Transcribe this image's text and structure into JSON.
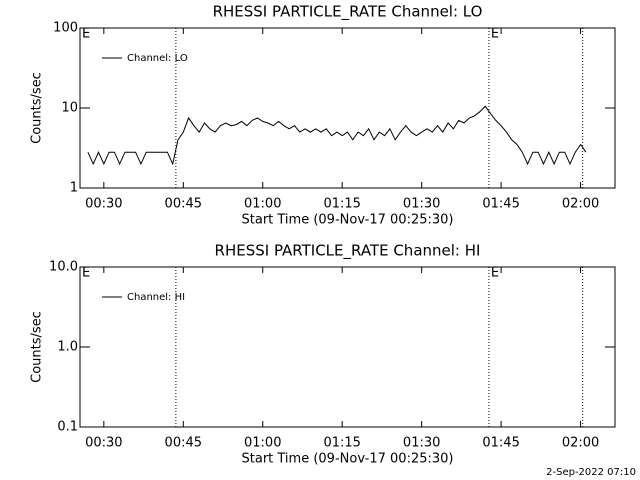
{
  "chart_data": [
    {
      "type": "line",
      "title": "RHESSI PARTICLE_RATE Channel: LO",
      "xlabel": "Start Time (09-Nov-17 00:25:30)",
      "ylabel": "Counts/sec",
      "log_y": true,
      "legend": "upper left",
      "xlim": [
        25.5,
        126.5
      ],
      "xticks": [
        {
          "value": 30,
          "label": "00:30"
        },
        {
          "value": 45,
          "label": "00:45"
        },
        {
          "value": 60,
          "label": "01:00"
        },
        {
          "value": 75,
          "label": "01:15"
        },
        {
          "value": 90,
          "label": "01:30"
        },
        {
          "value": 105,
          "label": "01:45"
        },
        {
          "value": 120,
          "label": "02:00"
        }
      ],
      "ylim": [
        1,
        100
      ],
      "yticks": [
        1,
        10,
        100
      ],
      "vlines": [
        43.6,
        102.7,
        120.4
      ],
      "annotations": [
        {
          "text": "E",
          "x": 25.5
        },
        {
          "text": "E",
          "x": 102.7
        }
      ],
      "x": [
        27,
        28,
        29,
        30,
        31,
        32,
        33,
        34,
        35,
        36,
        37,
        38,
        39,
        40,
        41,
        42,
        43,
        44,
        45,
        46,
        47,
        48,
        49,
        50,
        51,
        52,
        53,
        54,
        55,
        56,
        57,
        58,
        59,
        60,
        61,
        62,
        63,
        64,
        65,
        66,
        67,
        68,
        69,
        70,
        71,
        72,
        73,
        74,
        75,
        76,
        77,
        78,
        79,
        80,
        81,
        82,
        83,
        84,
        85,
        86,
        87,
        88,
        89,
        90,
        91,
        92,
        93,
        94,
        95,
        96,
        97,
        98,
        99,
        100,
        101,
        102,
        103,
        104,
        105,
        106,
        107,
        108,
        109,
        110,
        111,
        112,
        113,
        114,
        115,
        116,
        117,
        118,
        119,
        120,
        121
      ],
      "series": [
        {
          "name": "Channel: LO",
          "color": "#000000",
          "values": [
            2.8,
            2.0,
            2.8,
            2.0,
            2.8,
            2.8,
            2.0,
            2.8,
            2.8,
            2.8,
            2.0,
            2.8,
            2.8,
            2.8,
            2.8,
            2.8,
            2.0,
            4.0,
            5.0,
            7.5,
            6.0,
            5.0,
            6.5,
            5.5,
            5.0,
            6.0,
            6.5,
            6.0,
            6.2,
            6.8,
            6.0,
            7.0,
            7.5,
            6.8,
            6.5,
            6.0,
            6.8,
            6.0,
            5.5,
            6.0,
            5.0,
            5.5,
            5.0,
            5.5,
            5.0,
            5.5,
            4.5,
            5.0,
            4.5,
            5.0,
            4.0,
            5.0,
            4.5,
            5.5,
            4.0,
            5.0,
            4.5,
            5.5,
            4.0,
            5.0,
            6.0,
            5.0,
            4.5,
            5.0,
            5.5,
            5.0,
            6.0,
            5.0,
            6.5,
            5.5,
            7.0,
            6.5,
            7.5,
            8.0,
            9.0,
            10.5,
            8.5,
            7.0,
            6.0,
            5.0,
            4.0,
            3.5,
            2.8,
            2.0,
            2.8,
            2.8,
            2.0,
            2.8,
            2.0,
            2.8,
            2.8,
            2.0,
            2.8,
            3.5,
            2.8
          ]
        }
      ]
    },
    {
      "type": "line",
      "title": "RHESSI PARTICLE_RATE Channel: HI",
      "xlabel": "Start Time (09-Nov-17 00:25:30)",
      "ylabel": "Counts/sec",
      "log_y": true,
      "legend": "upper left",
      "xlim": [
        25.5,
        126.5
      ],
      "xticks": [
        {
          "value": 30,
          "label": "00:30"
        },
        {
          "value": 45,
          "label": "00:45"
        },
        {
          "value": 60,
          "label": "01:00"
        },
        {
          "value": 75,
          "label": "01:15"
        },
        {
          "value": 90,
          "label": "01:30"
        },
        {
          "value": 105,
          "label": "01:45"
        },
        {
          "value": 120,
          "label": "02:00"
        }
      ],
      "ylim": [
        0.1,
        10
      ],
      "yticks": [
        0.1,
        {
          "value": 1,
          "label": "1.0"
        },
        {
          "value": 10,
          "label": "10.0"
        }
      ],
      "vlines": [
        43.6,
        102.7,
        120.4
      ],
      "annotations": [
        {
          "text": "E",
          "x": 25.5
        },
        {
          "text": "E",
          "x": 102.7
        }
      ],
      "x": [],
      "series": [
        {
          "name": "Channel: HI",
          "color": "#000000",
          "values": []
        }
      ]
    }
  ],
  "footer": "2-Sep-2022 07:10"
}
